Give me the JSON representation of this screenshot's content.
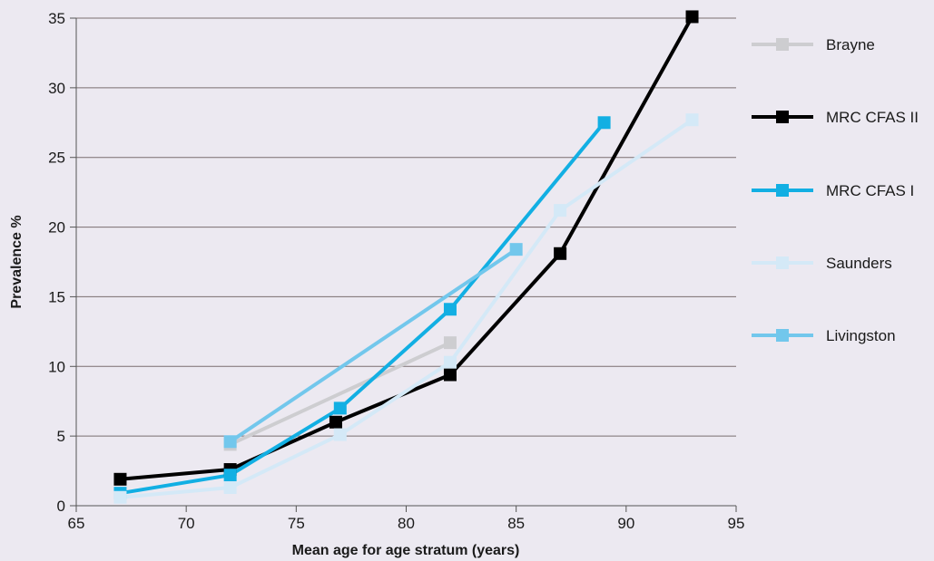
{
  "chart_data": {
    "type": "line",
    "title": "",
    "xlabel": "Mean age for age stratum (years)",
    "ylabel": "Prevalence %",
    "xlim": [
      65,
      95
    ],
    "ylim": [
      0,
      35
    ],
    "xticks": [
      65,
      70,
      75,
      80,
      85,
      90,
      95
    ],
    "yticks": [
      0,
      5,
      10,
      15,
      20,
      25,
      30,
      35
    ],
    "grid": "horizontal",
    "legend_position": "right",
    "series": [
      {
        "name": "Brayne",
        "color": "#cdcdd0",
        "points": [
          [
            72,
            4.4
          ],
          [
            82,
            11.7
          ]
        ]
      },
      {
        "name": "MRC CFAS II",
        "color": "#000000",
        "points": [
          [
            67,
            1.9
          ],
          [
            72,
            2.6
          ],
          [
            76.8,
            6.0
          ],
          [
            82,
            9.4
          ],
          [
            87,
            18.1
          ],
          [
            93,
            35.1
          ]
        ]
      },
      {
        "name": "MRC CFAS I",
        "color": "#12afe3",
        "points": [
          [
            67,
            0.9
          ],
          [
            72,
            2.2
          ],
          [
            77,
            7.0
          ],
          [
            82,
            14.1
          ],
          [
            89,
            27.5
          ]
        ]
      },
      {
        "name": "Saunders",
        "color": "#d4e9f7",
        "points": [
          [
            67,
            0.6
          ],
          [
            72,
            1.3
          ],
          [
            77,
            5.1
          ],
          [
            82,
            10.3
          ],
          [
            87,
            21.2
          ],
          [
            93,
            27.7
          ]
        ]
      },
      {
        "name": "Livingston",
        "color": "#72c7ec",
        "points": [
          [
            72,
            4.6
          ],
          [
            85,
            18.4
          ]
        ]
      }
    ]
  }
}
